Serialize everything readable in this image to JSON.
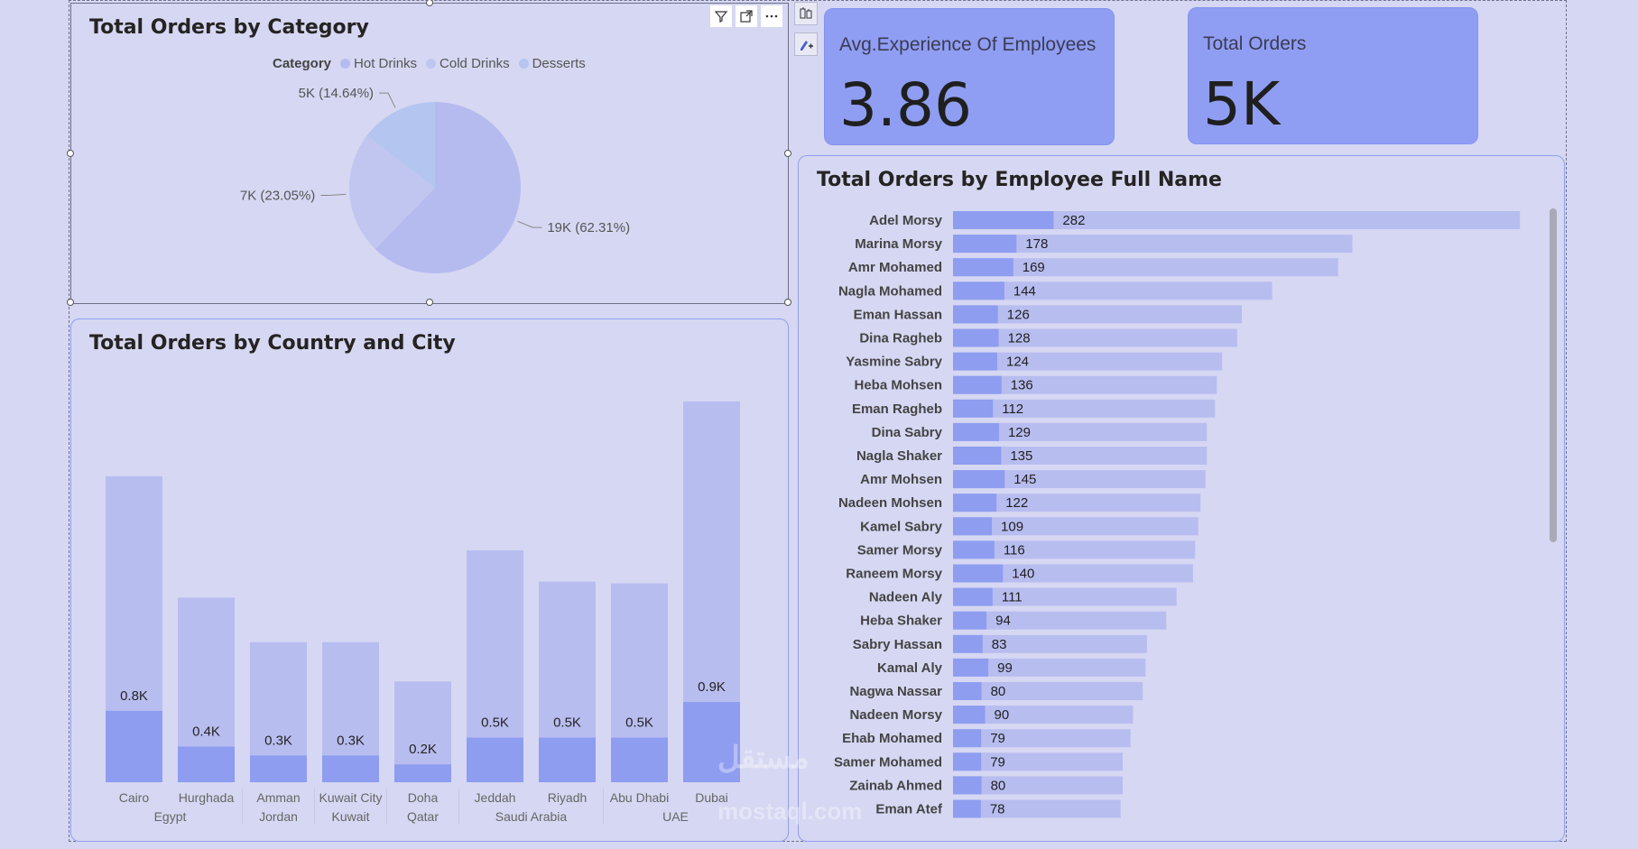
{
  "pie_visual": {
    "title": "Total Orders by Category",
    "legend_title": "Category",
    "header_icons": [
      "filter-icon",
      "focus-mode-icon",
      "more-options-icon"
    ],
    "chart_data": {
      "type": "pie",
      "title": "Total Orders by Category",
      "legend": "top",
      "categories": [
        "Hot  Drinks",
        "Cold  Drinks",
        "Desserts"
      ],
      "values": [
        62.31,
        23.05,
        14.64
      ],
      "labels": [
        "19K (62.31%)",
        "7K (23.05%)",
        "5K (14.64%)"
      ],
      "colors": [
        "#b6bbef",
        "#c1c6f1",
        "#b4c6f0"
      ]
    }
  },
  "bar_visual": {
    "title": "Total Orders by Country and City",
    "chart_data": {
      "type": "bar",
      "title": "Total Orders by Country and City",
      "categories": [
        "Cairo",
        "Hurghada",
        "Amman",
        "Kuwait City",
        "Doha",
        "Jeddah",
        "Riyadh",
        "Abu Dhabi",
        "Dubai"
      ],
      "groups": [
        {
          "name": "Egypt",
          "cities": [
            "Cairo",
            "Hurghada"
          ]
        },
        {
          "name": "Jordan",
          "cities": [
            "Amman"
          ]
        },
        {
          "name": "Kuwait",
          "cities": [
            "Kuwait City"
          ]
        },
        {
          "name": "Qatar",
          "cities": [
            "Doha"
          ]
        },
        {
          "name": "Saudi Arabia",
          "cities": [
            "Jeddah",
            "Riyadh"
          ]
        },
        {
          "name": "UAE",
          "cities": [
            "Abu Dhabi",
            "Dubai"
          ]
        }
      ],
      "values": [
        0.8,
        0.4,
        0.3,
        0.3,
        0.2,
        0.5,
        0.5,
        0.5,
        0.9
      ],
      "value_labels": [
        "0.8K",
        "0.4K",
        "0.3K",
        "0.3K",
        "0.2K",
        "0.5K",
        "0.5K",
        "0.5K",
        "0.9K"
      ],
      "background_values": [
        3.43,
        2.07,
        1.57,
        1.57,
        1.13,
        2.6,
        2.25,
        2.23,
        4.27
      ],
      "ylim": [
        0,
        4.4
      ],
      "colors": {
        "value": "#8e9df0",
        "background": "#b8bdf0"
      }
    }
  },
  "kpi_cards": [
    {
      "label": "Avg.Experience Of Employees",
      "value": "3.86"
    },
    {
      "label": "Total Orders",
      "value": "5K"
    }
  ],
  "employee_visual": {
    "title": "Total Orders by Employee Full Name",
    "chart_data": {
      "type": "bar",
      "orientation": "horizontal",
      "title": "Total Orders by Employee Full Name",
      "categories": [
        "Adel Morsy",
        "Marina Morsy",
        "Amr Mohamed",
        "Nagla Mohamed",
        "Eman Hassan",
        "Dina Ragheb",
        "Yasmine Sabry",
        "Heba Mohsen",
        "Eman Ragheb",
        "Dina Sabry",
        "Nagla Shaker",
        "Amr Mohsen",
        "Nadeen Mohsen",
        "Kamel Sabry",
        "Samer Morsy",
        "Raneem Morsy",
        "Nadeen Aly",
        "Heba Shaker",
        "Sabry Hassan",
        "Kamal Aly",
        "Nagwa Nassar",
        "Nadeen Morsy",
        "Ehab Mohamed",
        "Samer Mohamed",
        "Zainab Ahmed",
        "Eman Atef"
      ],
      "values": [
        282,
        178,
        169,
        144,
        126,
        128,
        124,
        136,
        112,
        129,
        135,
        145,
        122,
        109,
        116,
        140,
        111,
        94,
        83,
        99,
        80,
        90,
        79,
        79,
        80,
        78
      ],
      "background_values": [
        1590,
        1120,
        1080,
        895,
        810,
        797,
        755,
        740,
        735,
        712,
        712,
        708,
        694,
        688,
        679,
        673,
        627,
        598,
        544,
        540,
        532,
        505,
        498,
        476,
        476,
        470
      ],
      "xlim": [
        0,
        1620
      ],
      "colors": {
        "value": "#8e9df0",
        "background": "#b8bdf0"
      }
    }
  },
  "side_tools": [
    "format-visual-icon",
    "add-visual-icon"
  ],
  "watermark": {
    "arabic": "مستقل",
    "latin": "mostaql.com"
  }
}
